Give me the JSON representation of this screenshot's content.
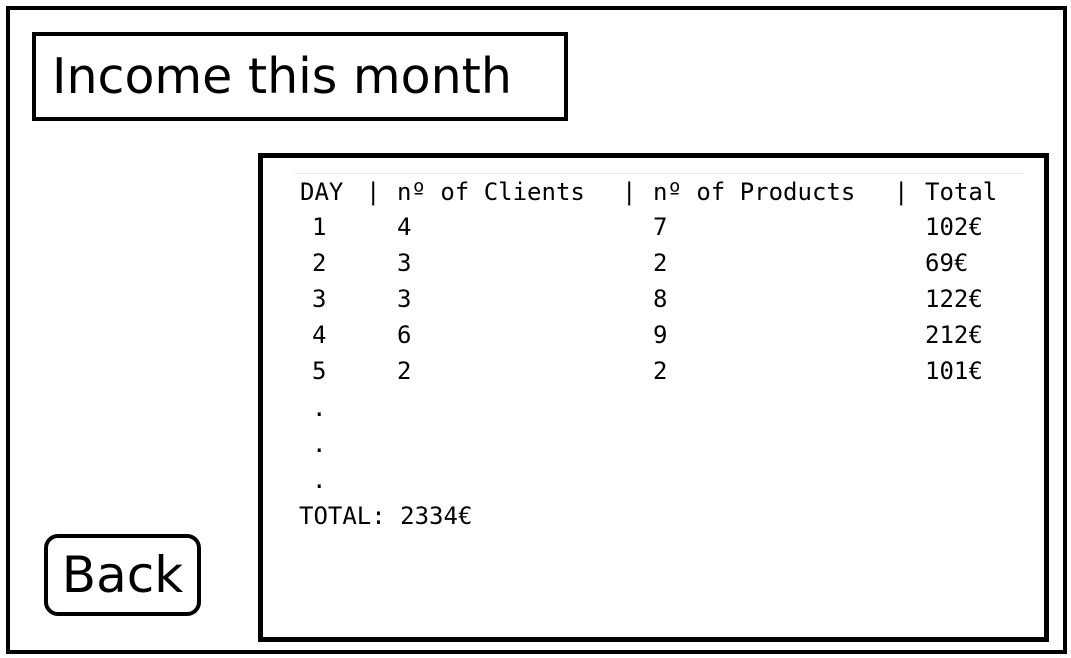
{
  "header": {
    "title": "Income this month"
  },
  "actions": {
    "back_label": "Back"
  },
  "table": {
    "columns": [
      "DAY",
      "nº of Clients",
      "nº of Products",
      "Total"
    ],
    "separator": "|",
    "rows": [
      {
        "day": "1",
        "clients": "4",
        "products": "7",
        "total": "102€"
      },
      {
        "day": "2",
        "clients": "3",
        "products": "2",
        "total": "69€"
      },
      {
        "day": "3",
        "clients": "3",
        "products": "8",
        "total": "122€"
      },
      {
        "day": "4",
        "clients": "6",
        "products": "9",
        "total": "212€"
      },
      {
        "day": "5",
        "clients": "2",
        "products": "2",
        "total": "101€"
      }
    ],
    "continuation": [
      ".",
      ".",
      "."
    ],
    "total_line": "TOTAL: 2334€"
  }
}
